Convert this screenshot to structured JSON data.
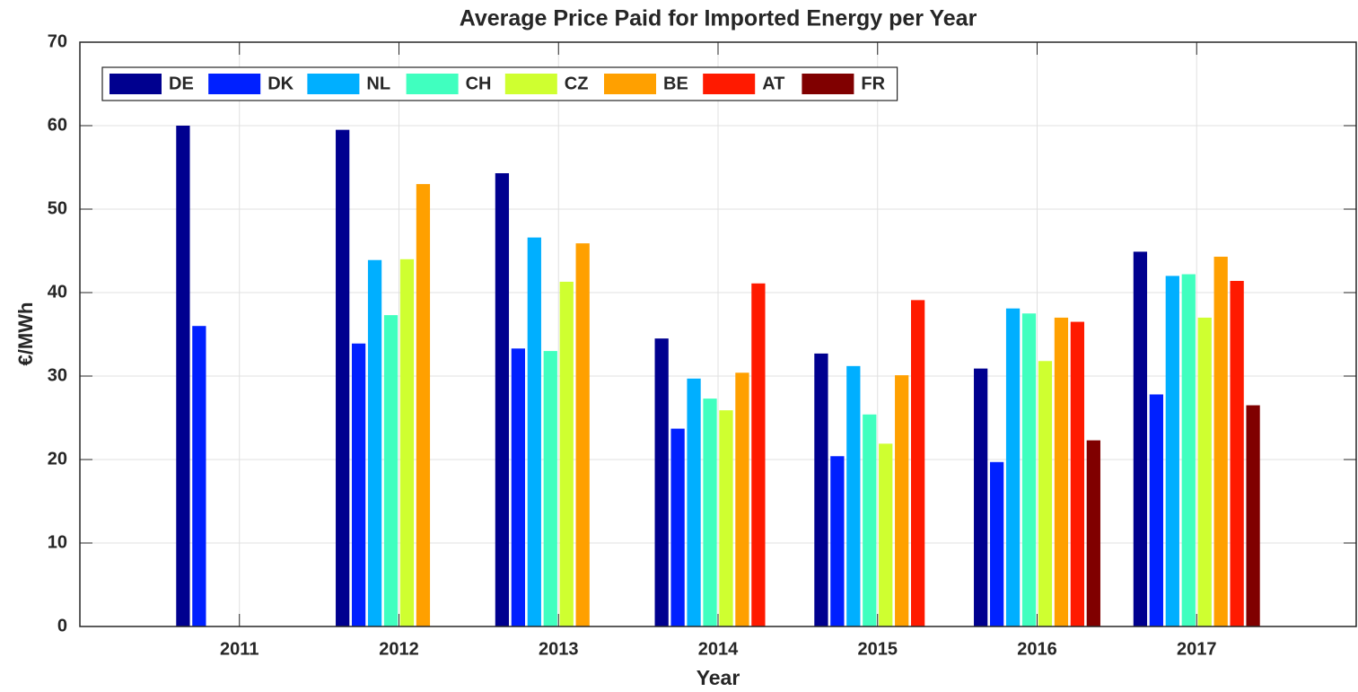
{
  "chart_data": {
    "type": "bar",
    "title": "Average Price Paid for Imported Energy per Year",
    "x_label": "Year",
    "y_label": "€/MWh",
    "categories": [
      "2011",
      "2012",
      "2013",
      "2014",
      "2015",
      "2016",
      "2017"
    ],
    "series": [
      {
        "name": "DE",
        "color": "#00008f",
        "values": [
          60,
          59.5,
          54.3,
          34.5,
          32.7,
          30.9,
          44.9
        ]
      },
      {
        "name": "DK",
        "color": "#0020ff",
        "values": [
          36.0,
          33.9,
          33.3,
          23.7,
          20.4,
          19.7,
          27.8
        ]
      },
      {
        "name": "NL",
        "color": "#00afff",
        "values": [
          null,
          43.9,
          46.6,
          29.7,
          31.2,
          38.1,
          42.0
        ]
      },
      {
        "name": "CH",
        "color": "#40ffbf",
        "values": [
          null,
          37.3,
          33.0,
          27.3,
          25.4,
          37.5,
          42.2
        ]
      },
      {
        "name": "CZ",
        "color": "#cfff30",
        "values": [
          null,
          44.0,
          41.3,
          25.9,
          21.9,
          31.8,
          37.0
        ]
      },
      {
        "name": "BE",
        "color": "#ffa000",
        "values": [
          null,
          53.0,
          45.9,
          30.4,
          30.1,
          37.0,
          44.3
        ]
      },
      {
        "name": "AT",
        "color": "#ff1a00",
        "values": [
          null,
          null,
          null,
          41.1,
          39.1,
          36.5,
          41.4
        ]
      },
      {
        "name": "FR",
        "color": "#800000",
        "values": [
          null,
          null,
          null,
          null,
          null,
          22.3,
          26.5
        ]
      }
    ],
    "ylim": [
      0,
      70
    ],
    "yticks": [
      0,
      10,
      20,
      30,
      40,
      50,
      60,
      70
    ],
    "grid": true,
    "legend": "top-left"
  }
}
